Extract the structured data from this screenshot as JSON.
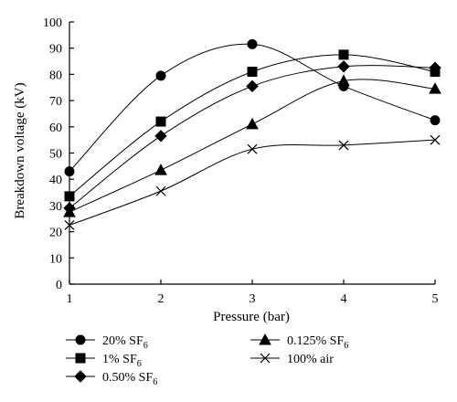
{
  "chart_data": {
    "type": "line",
    "xlabel": "Pressure (bar)",
    "ylabel": "Breakdown voltage (kV)",
    "x": [
      1,
      2,
      3,
      4,
      5
    ],
    "xlim": [
      1,
      5
    ],
    "ylim": [
      0,
      100
    ],
    "xticks": [
      "1",
      "2",
      "3",
      "4",
      "5"
    ],
    "yticks": [
      "0",
      "10",
      "20",
      "30",
      "40",
      "50",
      "60",
      "70",
      "80",
      "90",
      "100"
    ],
    "grid": false,
    "legend_position": "bottom",
    "series": [
      {
        "name": "20% SF",
        "name_sub": "6",
        "marker": "circle",
        "values": [
          43,
          79.5,
          91.5,
          75.5,
          62.5
        ]
      },
      {
        "name": "1% SF",
        "name_sub": "6",
        "marker": "square",
        "values": [
          33.5,
          62,
          81,
          87.5,
          81
        ]
      },
      {
        "name": "0.50% SF",
        "name_sub": "6",
        "marker": "diamond",
        "values": [
          29,
          56.5,
          75.5,
          83,
          82.5
        ]
      },
      {
        "name": "0.125% SF",
        "name_sub": "6",
        "marker": "triangle",
        "values": [
          27.5,
          43.5,
          61,
          77.5,
          74.5
        ]
      },
      {
        "name": "100% air",
        "name_sub": "",
        "marker": "x",
        "values": [
          22.5,
          35.5,
          51.5,
          53,
          55
        ]
      }
    ]
  }
}
